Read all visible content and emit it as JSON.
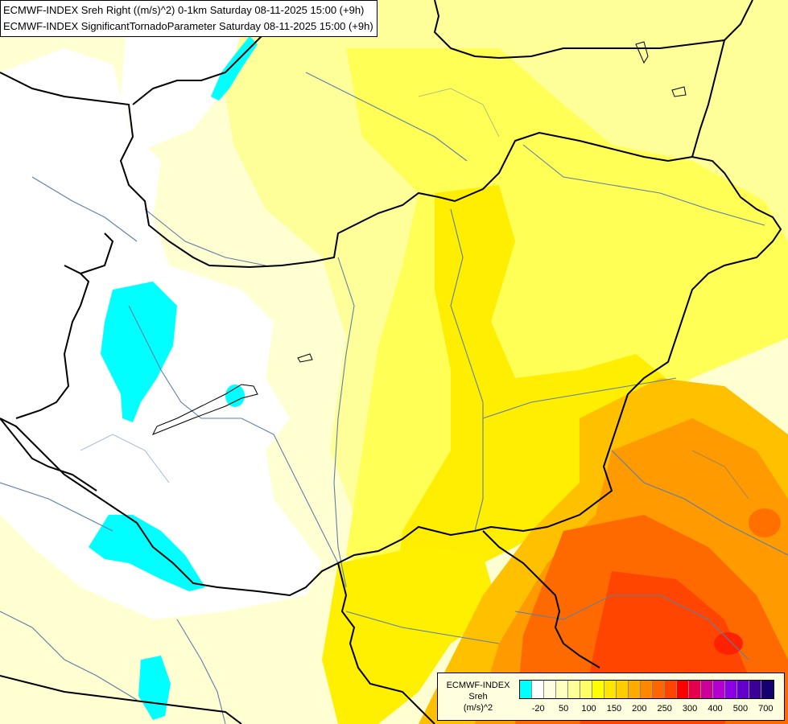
{
  "title": {
    "line1": "ECMWF-INDEX Sreh Right ((m/s)^2) 0-1km Saturday 08-11-2025 15:00 (+9h)",
    "line2": "ECMWF-INDEX SignificantTornadoParameter Saturday 08-11-2025 15:00 (+9h)"
  },
  "legend": {
    "source": "ECMWF-INDEX",
    "parameter": "Sreh",
    "unit": "(m/s)^2",
    "colors": [
      "#00ffff",
      "#ffffff",
      "#ffffe0",
      "#ffffc0",
      "#ffff99",
      "#ffff66",
      "#ffff00",
      "#ffe600",
      "#ffcc00",
      "#ffaa00",
      "#ff8800",
      "#ff6600",
      "#ff4400",
      "#ff0000",
      "#e6004c",
      "#cc0099",
      "#b400cc",
      "#8c00e6",
      "#6400cc",
      "#3c0099",
      "#14006e"
    ],
    "tick_labels": [
      "-20",
      "50",
      "100",
      "150",
      "200",
      "250",
      "300",
      "400",
      "500",
      "700"
    ]
  }
}
